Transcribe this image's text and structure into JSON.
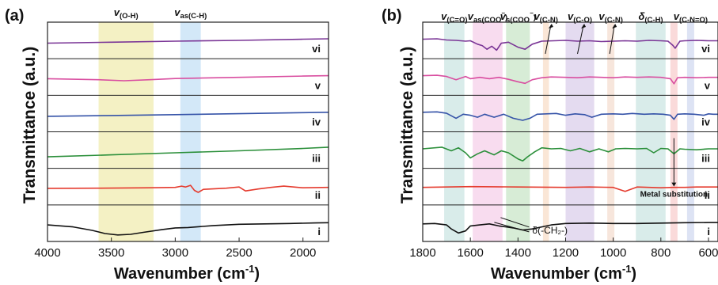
{
  "figure": {
    "xlabel_main": "Wavenumber (cm",
    "xlabel_sup": "-1",
    "xlabel_close": ")",
    "ylabel": "Transmittance (a.u.)"
  },
  "colors": {
    "i": "#111111",
    "ii": "#e53b2e",
    "iii": "#2b8f3a",
    "iv": "#3553a8",
    "v": "#d94ea0",
    "vi": "#7a3596"
  },
  "chart_data": [
    {
      "type": "line",
      "panel_label": "(a)",
      "xlabel": "Wavenumber (cm-1)",
      "ylabel": "Transmittance (a.u.)",
      "xlim": [
        4000,
        1800
      ],
      "x_reversed": true,
      "xticks": [
        4000,
        3500,
        3000,
        2500,
        2000
      ],
      "stacked_offset_panels": true,
      "bands": [
        {
          "label_main": "v",
          "label_sub": "(O-H)",
          "from": 3600,
          "to": 3170,
          "color": "#f4f1c4"
        },
        {
          "label_main": "v",
          "label_sub": "as(C-H)",
          "from": 2960,
          "to": 2800,
          "color": "#d3e8f8"
        }
      ],
      "series": [
        {
          "name": "i",
          "x": [
            4000,
            3800,
            3650,
            3550,
            3450,
            3350,
            3250,
            3100,
            3000,
            2900,
            2700,
            2500,
            2300,
            2100,
            1900,
            1800
          ],
          "y": [
            0.55,
            0.45,
            0.28,
            0.12,
            0.05,
            0.08,
            0.18,
            0.32,
            0.4,
            0.42,
            0.52,
            0.58,
            0.6,
            0.62,
            0.65,
            0.66
          ]
        },
        {
          "name": "ii",
          "x": [
            4000,
            3600,
            3200,
            3000,
            2950,
            2920,
            2880,
            2850,
            2820,
            2780,
            2600,
            2500,
            2450,
            2350,
            2250,
            2150,
            2000,
            1800
          ],
          "y": [
            0.55,
            0.56,
            0.58,
            0.6,
            0.66,
            0.62,
            0.7,
            0.45,
            0.35,
            0.5,
            0.56,
            0.62,
            0.42,
            0.52,
            0.6,
            0.66,
            0.58,
            0.6
          ]
        },
        {
          "name": "iii",
          "x": [
            4000,
            3500,
            3000,
            2500,
            2000,
            1800
          ],
          "y": [
            0.3,
            0.4,
            0.5,
            0.6,
            0.72,
            0.78
          ]
        },
        {
          "name": "iv",
          "x": [
            4000,
            3500,
            3000,
            2500,
            2000,
            1800
          ],
          "y": [
            0.5,
            0.54,
            0.58,
            0.63,
            0.68,
            0.7
          ]
        },
        {
          "name": "v",
          "x": [
            4000,
            3600,
            3400,
            3200,
            3000,
            2500,
            2000,
            1800
          ],
          "y": [
            0.55,
            0.5,
            0.45,
            0.5,
            0.56,
            0.62,
            0.68,
            0.7
          ]
        },
        {
          "name": "vi",
          "x": [
            4000,
            3500,
            3000,
            2500,
            2000,
            1800
          ],
          "y": [
            0.5,
            0.55,
            0.6,
            0.64,
            0.7,
            0.72
          ]
        }
      ]
    },
    {
      "type": "line",
      "panel_label": "(b)",
      "xlabel": "Wavenumber (cm-1)",
      "ylabel": "Transmittance (a.u.)",
      "xlim": [
        1800,
        560
      ],
      "x_reversed": true,
      "xticks": [
        1800,
        1600,
        1400,
        1200,
        1000,
        800,
        600
      ],
      "stacked_offset_panels": true,
      "bands": [
        {
          "label_main": "v",
          "label_sub": "(C=O)",
          "from": 1710,
          "to": 1625,
          "color": "#d9ecea"
        },
        {
          "label_main": "v",
          "label_sub": "as(COO",
          "label_sup": "−",
          "label_close": ")",
          "from": 1590,
          "to": 1465,
          "color": "#f8dcef"
        },
        {
          "label_main": "v",
          "label_sub": "s(COO",
          "label_sup": "−",
          "label_close": ")",
          "from": 1450,
          "to": 1350,
          "color": "#d7ecd6"
        },
        {
          "label_main": "v",
          "label_sub": "(C-N)",
          "from": 1295,
          "to": 1270,
          "color": "#fae6d6"
        },
        {
          "label_main": "v",
          "label_sub": "(C-O)",
          "from": 1200,
          "to": 1080,
          "color": "#e4dbf0"
        },
        {
          "label_main": "v",
          "label_sub": "(C-N)",
          "from": 1025,
          "to": 995,
          "color": "#f7e6dc"
        },
        {
          "label_main": "δ",
          "label_sub": "(C-H)",
          "from": 905,
          "to": 780,
          "color": "#d9ecea"
        },
        {
          "label_main": "",
          "label_sub": "",
          "from": 760,
          "to": 730,
          "color": "#fadada"
        },
        {
          "label_main": "v",
          "label_sub": "(C-N=O)",
          "from": 690,
          "to": 660,
          "color": "#dde3f4"
        }
      ],
      "annotations": [
        {
          "text": "Metal substitution",
          "x": 745
        },
        {
          "text": "δ(-CH₂-)",
          "x": 1300
        }
      ],
      "series": [
        {
          "name": "i",
          "x": [
            1800,
            1750,
            1700,
            1680,
            1650,
            1620,
            1600,
            1560,
            1520,
            1480,
            1450,
            1420,
            1380,
            1340,
            1300,
            1260,
            1200,
            1100,
            1000,
            900,
            800,
            700,
            600,
            560
          ],
          "y": [
            0.6,
            0.62,
            0.55,
            0.35,
            0.15,
            0.25,
            0.5,
            0.55,
            0.6,
            0.5,
            0.45,
            0.4,
            0.3,
            0.35,
            0.45,
            0.55,
            0.62,
            0.64,
            0.62,
            0.62,
            0.64,
            0.66,
            0.67,
            0.67
          ]
        },
        {
          "name": "ii",
          "x": [
            1800,
            1700,
            1600,
            1500,
            1400,
            1300,
            1200,
            1100,
            1000,
            950,
            900,
            850,
            800,
            750,
            700,
            650,
            600,
            560
          ],
          "y": [
            0.6,
            0.62,
            0.64,
            0.63,
            0.62,
            0.61,
            0.6,
            0.62,
            0.6,
            0.4,
            0.62,
            0.6,
            0.58,
            0.6,
            0.6,
            0.62,
            0.62,
            0.62
          ]
        },
        {
          "name": "iii",
          "x": [
            1800,
            1720,
            1680,
            1650,
            1620,
            1600,
            1570,
            1540,
            1500,
            1470,
            1440,
            1400,
            1380,
            1360,
            1330,
            1300,
            1260,
            1220,
            1180,
            1140,
            1100,
            1060,
            1020,
            990,
            950,
            900,
            860,
            830,
            800,
            770,
            745,
            720,
            700,
            650,
            600,
            560
          ],
          "y": [
            0.7,
            0.78,
            0.6,
            0.75,
            0.5,
            0.25,
            0.45,
            0.6,
            0.4,
            0.6,
            0.5,
            0.2,
            0.1,
            0.3,
            0.55,
            0.75,
            0.7,
            0.72,
            0.6,
            0.72,
            0.55,
            0.7,
            0.55,
            0.7,
            0.72,
            0.7,
            0.72,
            0.5,
            0.72,
            0.7,
            0.45,
            0.7,
            0.68,
            0.65,
            0.7,
            0.7
          ]
        },
        {
          "name": "iv",
          "x": [
            1800,
            1740,
            1700,
            1660,
            1630,
            1600,
            1570,
            1540,
            1500,
            1460,
            1420,
            1380,
            1350,
            1320,
            1280,
            1240,
            1200,
            1160,
            1120,
            1090,
            1050,
            1000,
            960,
            920,
            870,
            830,
            790,
            760,
            745,
            730,
            700,
            660,
            620,
            600,
            580,
            560
          ],
          "y": [
            0.7,
            0.72,
            0.65,
            0.4,
            0.6,
            0.55,
            0.45,
            0.6,
            0.45,
            0.6,
            0.4,
            0.3,
            0.4,
            0.6,
            0.62,
            0.64,
            0.55,
            0.62,
            0.58,
            0.45,
            0.6,
            0.62,
            0.6,
            0.64,
            0.6,
            0.62,
            0.6,
            0.55,
            0.35,
            0.6,
            0.62,
            0.6,
            0.55,
            0.62,
            0.6,
            0.6
          ]
        },
        {
          "name": "v",
          "x": [
            1800,
            1740,
            1700,
            1660,
            1620,
            1600,
            1560,
            1520,
            1480,
            1440,
            1400,
            1370,
            1340,
            1300,
            1260,
            1200,
            1150,
            1100,
            1050,
            1000,
            950,
            900,
            850,
            800,
            760,
            745,
            730,
            700,
            650,
            600,
            560
          ],
          "y": [
            0.7,
            0.72,
            0.66,
            0.5,
            0.66,
            0.55,
            0.62,
            0.55,
            0.62,
            0.52,
            0.4,
            0.32,
            0.5,
            0.6,
            0.64,
            0.62,
            0.6,
            0.64,
            0.62,
            0.6,
            0.64,
            0.62,
            0.64,
            0.62,
            0.55,
            0.3,
            0.6,
            0.62,
            0.6,
            0.62,
            0.62
          ]
        },
        {
          "name": "vi",
          "x": [
            1800,
            1740,
            1700,
            1660,
            1620,
            1600,
            1570,
            1550,
            1530,
            1510,
            1490,
            1470,
            1440,
            1400,
            1370,
            1340,
            1300,
            1250,
            1200,
            1150,
            1100,
            1050,
            1000,
            950,
            900,
            850,
            800,
            770,
            750,
            740,
            720,
            700,
            650,
            600,
            560
          ],
          "y": [
            0.7,
            0.72,
            0.66,
            0.64,
            0.6,
            0.62,
            0.45,
            0.38,
            0.2,
            0.35,
            0.15,
            0.5,
            0.55,
            0.3,
            0.2,
            0.45,
            0.6,
            0.62,
            0.64,
            0.6,
            0.62,
            0.58,
            0.6,
            0.62,
            0.6,
            0.64,
            0.62,
            0.6,
            0.4,
            0.25,
            0.6,
            0.62,
            0.64,
            0.62,
            0.62
          ]
        }
      ]
    }
  ]
}
